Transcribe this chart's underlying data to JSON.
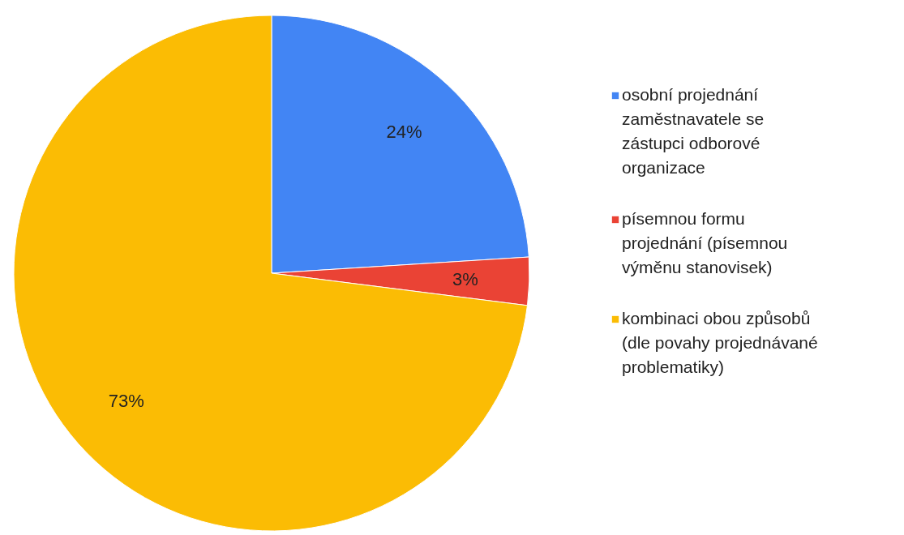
{
  "chart_data": {
    "type": "pie",
    "categories": [
      "osobní projednání zaměstnavatele se zástupci odborové organizace",
      "písemnou formu projednání (písemnou výměnu stanovisek)",
      "kombinaci obou způsobů (dle povahy projednávané problematiky)"
    ],
    "values": [
      24,
      3,
      73
    ],
    "value_labels": [
      "24%",
      "3%",
      "73%"
    ],
    "colors": [
      "#4285f4",
      "#ea4335",
      "#fbbc04"
    ],
    "legend": "right"
  }
}
